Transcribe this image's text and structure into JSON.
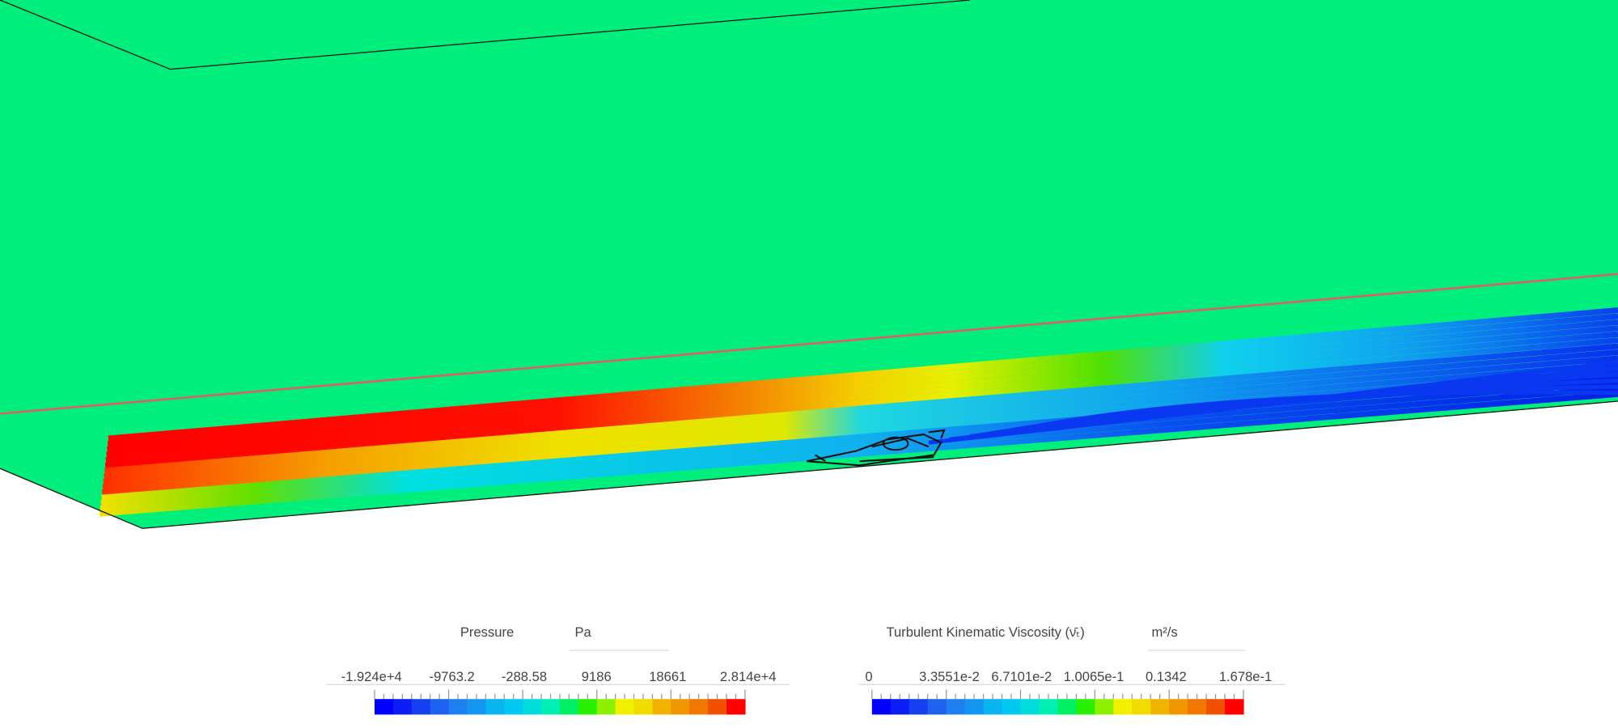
{
  "legends": [
    {
      "title": "Pressure",
      "unit": "Pa",
      "labels": [
        "-1.924e+4",
        "-9763.2",
        "-288.58",
        "9186",
        "18661",
        "2.814e+4"
      ]
    },
    {
      "title": "Turbulent Kinematic Viscosity (ν̄ₜ)",
      "unit": "m²/s",
      "labels": [
        "0",
        "3.3551e-2",
        "6.7101e-2",
        "1.0065e-1",
        "0.1342",
        "1.678e-1"
      ]
    }
  ]
}
